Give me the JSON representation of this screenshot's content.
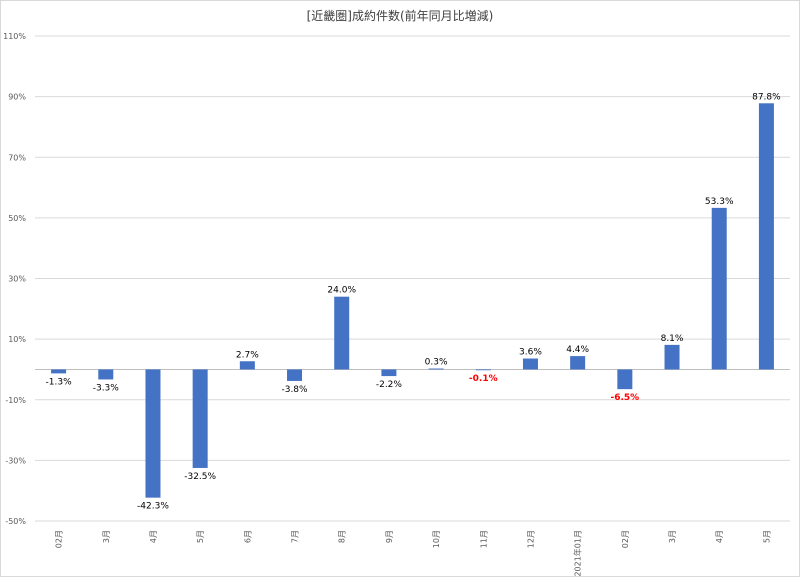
{
  "chart_data": {
    "type": "bar",
    "title": "[近畿圏]成約件数(前年同月比増減)",
    "xlabel": "",
    "ylabel": "",
    "ylim": [
      -0.5,
      1.1
    ],
    "yticks": [
      "110%",
      "90%",
      "70%",
      "50%",
      "30%",
      "10%",
      "-10%",
      "-30%",
      "-50%"
    ],
    "grid": true,
    "categories": [
      "02月",
      "3月",
      "4月",
      "5月",
      "6月",
      "7月",
      "8月",
      "9月",
      "10月",
      "11月",
      "12月",
      "2021年01月",
      "02月",
      "3月",
      "4月",
      "5月"
    ],
    "values": [
      -0.013,
      -0.033,
      -0.423,
      -0.325,
      0.027,
      -0.038,
      0.24,
      -0.022,
      0.003,
      -0.001,
      0.036,
      0.044,
      -0.065,
      0.081,
      0.533,
      0.878
    ],
    "labels": [
      "-1.3%",
      "-3.3%",
      "-42.3%",
      "-32.5%",
      "2.7%",
      "-3.8%",
      "24.0%",
      "-2.2%",
      "0.3%",
      "-0.1%",
      "3.6%",
      "4.4%",
      "-6.5%",
      "8.1%",
      "53.3%",
      "87.8%"
    ],
    "highlight_labels": [
      9,
      12
    ],
    "colors": {
      "bar": "#4472c4",
      "label": "#000000",
      "highlight": "#ff0000",
      "grid": "#d9d9d9",
      "axis": "#bfbfbf"
    }
  }
}
